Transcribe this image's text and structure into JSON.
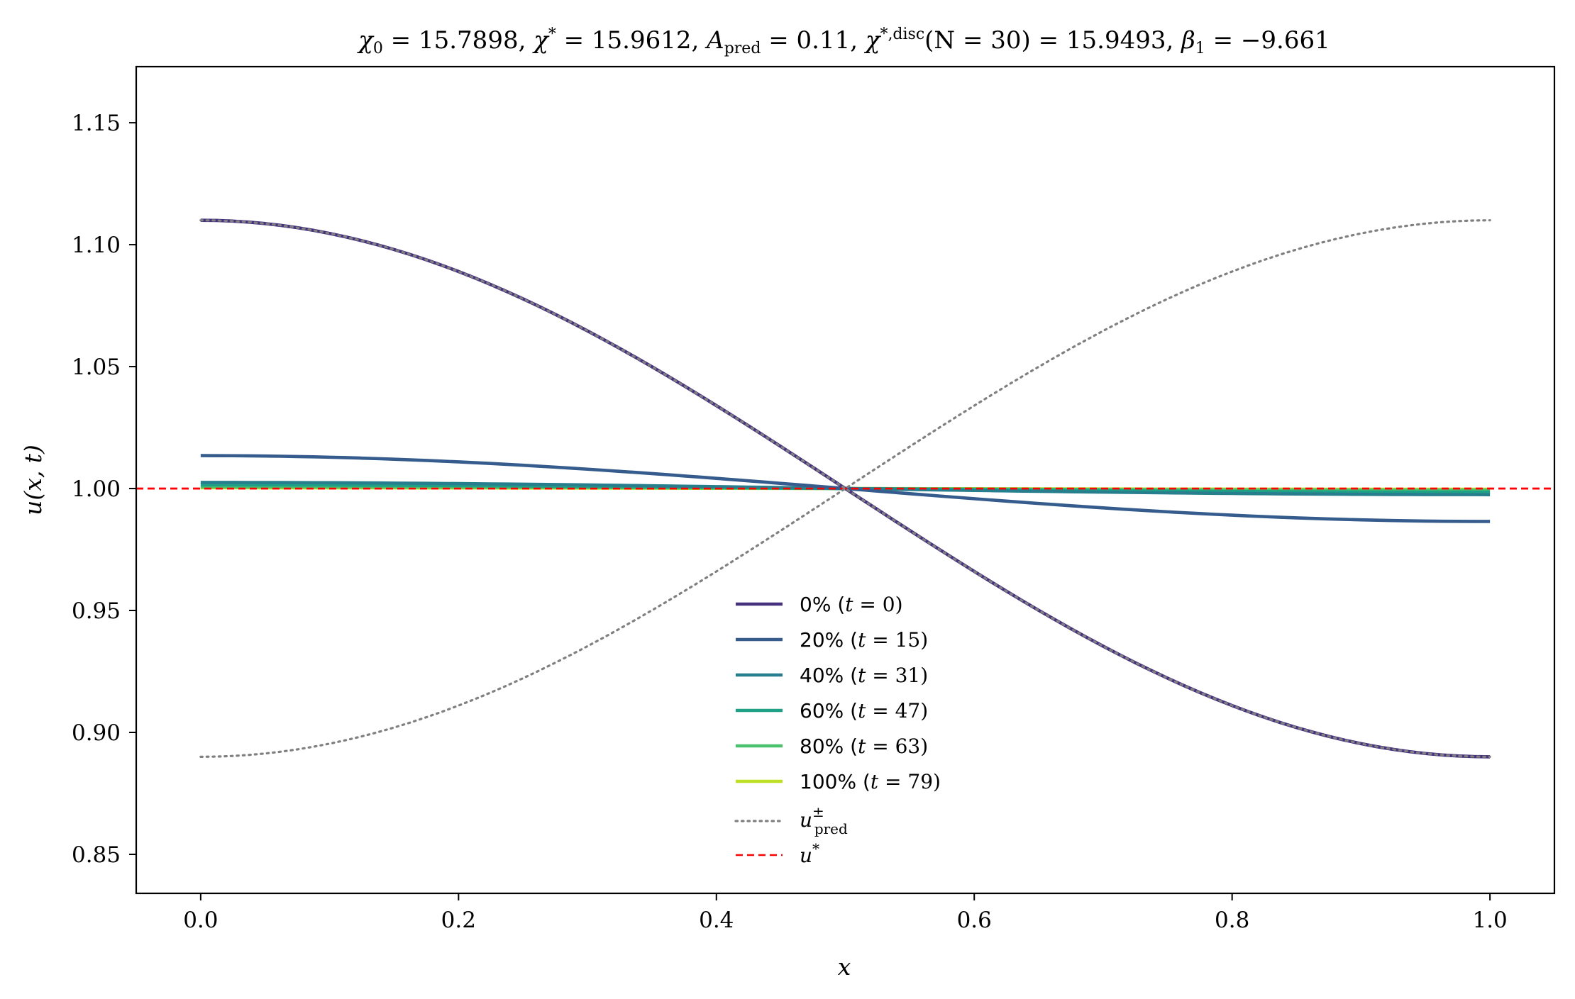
{
  "chart_data": {
    "type": "line",
    "title": "χ₀ = 15.7898,  χ* = 15.9612,  A_pred = 0.11,  χ*,disc(N = 30) = 15.9493,  β₁ = −9.661",
    "title_parts": {
      "chi0": "χ",
      "chi0_sub": "0",
      "chi0_val": " = 15.7898,  ",
      "chistar": "χ",
      "chistar_sup": "*",
      "chistar_val": " = 15.9612,  ",
      "apred": "A",
      "apred_sub": "pred",
      "apred_val": " = 0.11,  ",
      "chidisc": "χ",
      "chidisc_sup": "*,disc",
      "chidisc_arg": "(N = 30) = 15.9493,  ",
      "beta": "β",
      "beta_sub": "1",
      "beta_val": " = −9.661"
    },
    "xlabel": "x",
    "ylabel": "u(x, t)",
    "xlim": [
      -0.05,
      1.05
    ],
    "ylim": [
      0.834,
      1.173
    ],
    "xticks": [
      "0.0",
      "0.2",
      "0.4",
      "0.6",
      "0.8",
      "1.0"
    ],
    "xtick_values": [
      0.0,
      0.2,
      0.4,
      0.6,
      0.8,
      1.0
    ],
    "yticks": [
      "0.85",
      "0.90",
      "0.95",
      "1.00",
      "1.05",
      "1.10",
      "1.15"
    ],
    "ytick_values": [
      0.85,
      0.9,
      0.95,
      1.0,
      1.05,
      1.1,
      1.15
    ],
    "grid": false,
    "legend_position": "lower-center",
    "series": [
      {
        "name": "0% (t = 0)",
        "label_main": "0% (",
        "label_var": "t",
        "label_rest": " = 0)",
        "color": "#46317e",
        "amplitude": 0.11,
        "style": "solid"
      },
      {
        "name": "20% (t = 15)",
        "label_main": "20% (",
        "label_var": "t",
        "label_rest": " = 15)",
        "color": "#365c8d",
        "amplitude": 0.0135,
        "style": "solid"
      },
      {
        "name": "40% (t = 31)",
        "label_main": "40% (",
        "label_var": "t",
        "label_rest": " = 31)",
        "color": "#277f8e",
        "amplitude": 0.0025,
        "style": "solid"
      },
      {
        "name": "60% (t = 47)",
        "label_main": "60% (",
        "label_var": "t",
        "label_rest": " = 47)",
        "color": "#1fa187",
        "amplitude": 0.0015,
        "style": "solid"
      },
      {
        "name": "80% (t = 63)",
        "label_main": "80% (",
        "label_var": "t",
        "label_rest": " = 63)",
        "color": "#4ac16d",
        "amplitude": 0.0007,
        "style": "solid"
      },
      {
        "name": "100% (t = 79)",
        "label_main": "100% (",
        "label_var": "t",
        "label_rest": " = 79)",
        "color": "#bddf26",
        "amplitude": 0.0003,
        "style": "solid"
      }
    ],
    "pred_curves": {
      "name": "u±pred",
      "label_main": "u",
      "label_sup": "±",
      "label_sub": "pred",
      "color": "#808080",
      "amplitudes": [
        0.11,
        -0.11
      ],
      "style": "dotted"
    },
    "reference_line": {
      "name": "u*",
      "label_main": "u",
      "label_sup": "*",
      "color": "#ff0000",
      "y": 1.0,
      "style": "dashed"
    },
    "profile": "u(x) = 1 + A·cos(πx)"
  }
}
